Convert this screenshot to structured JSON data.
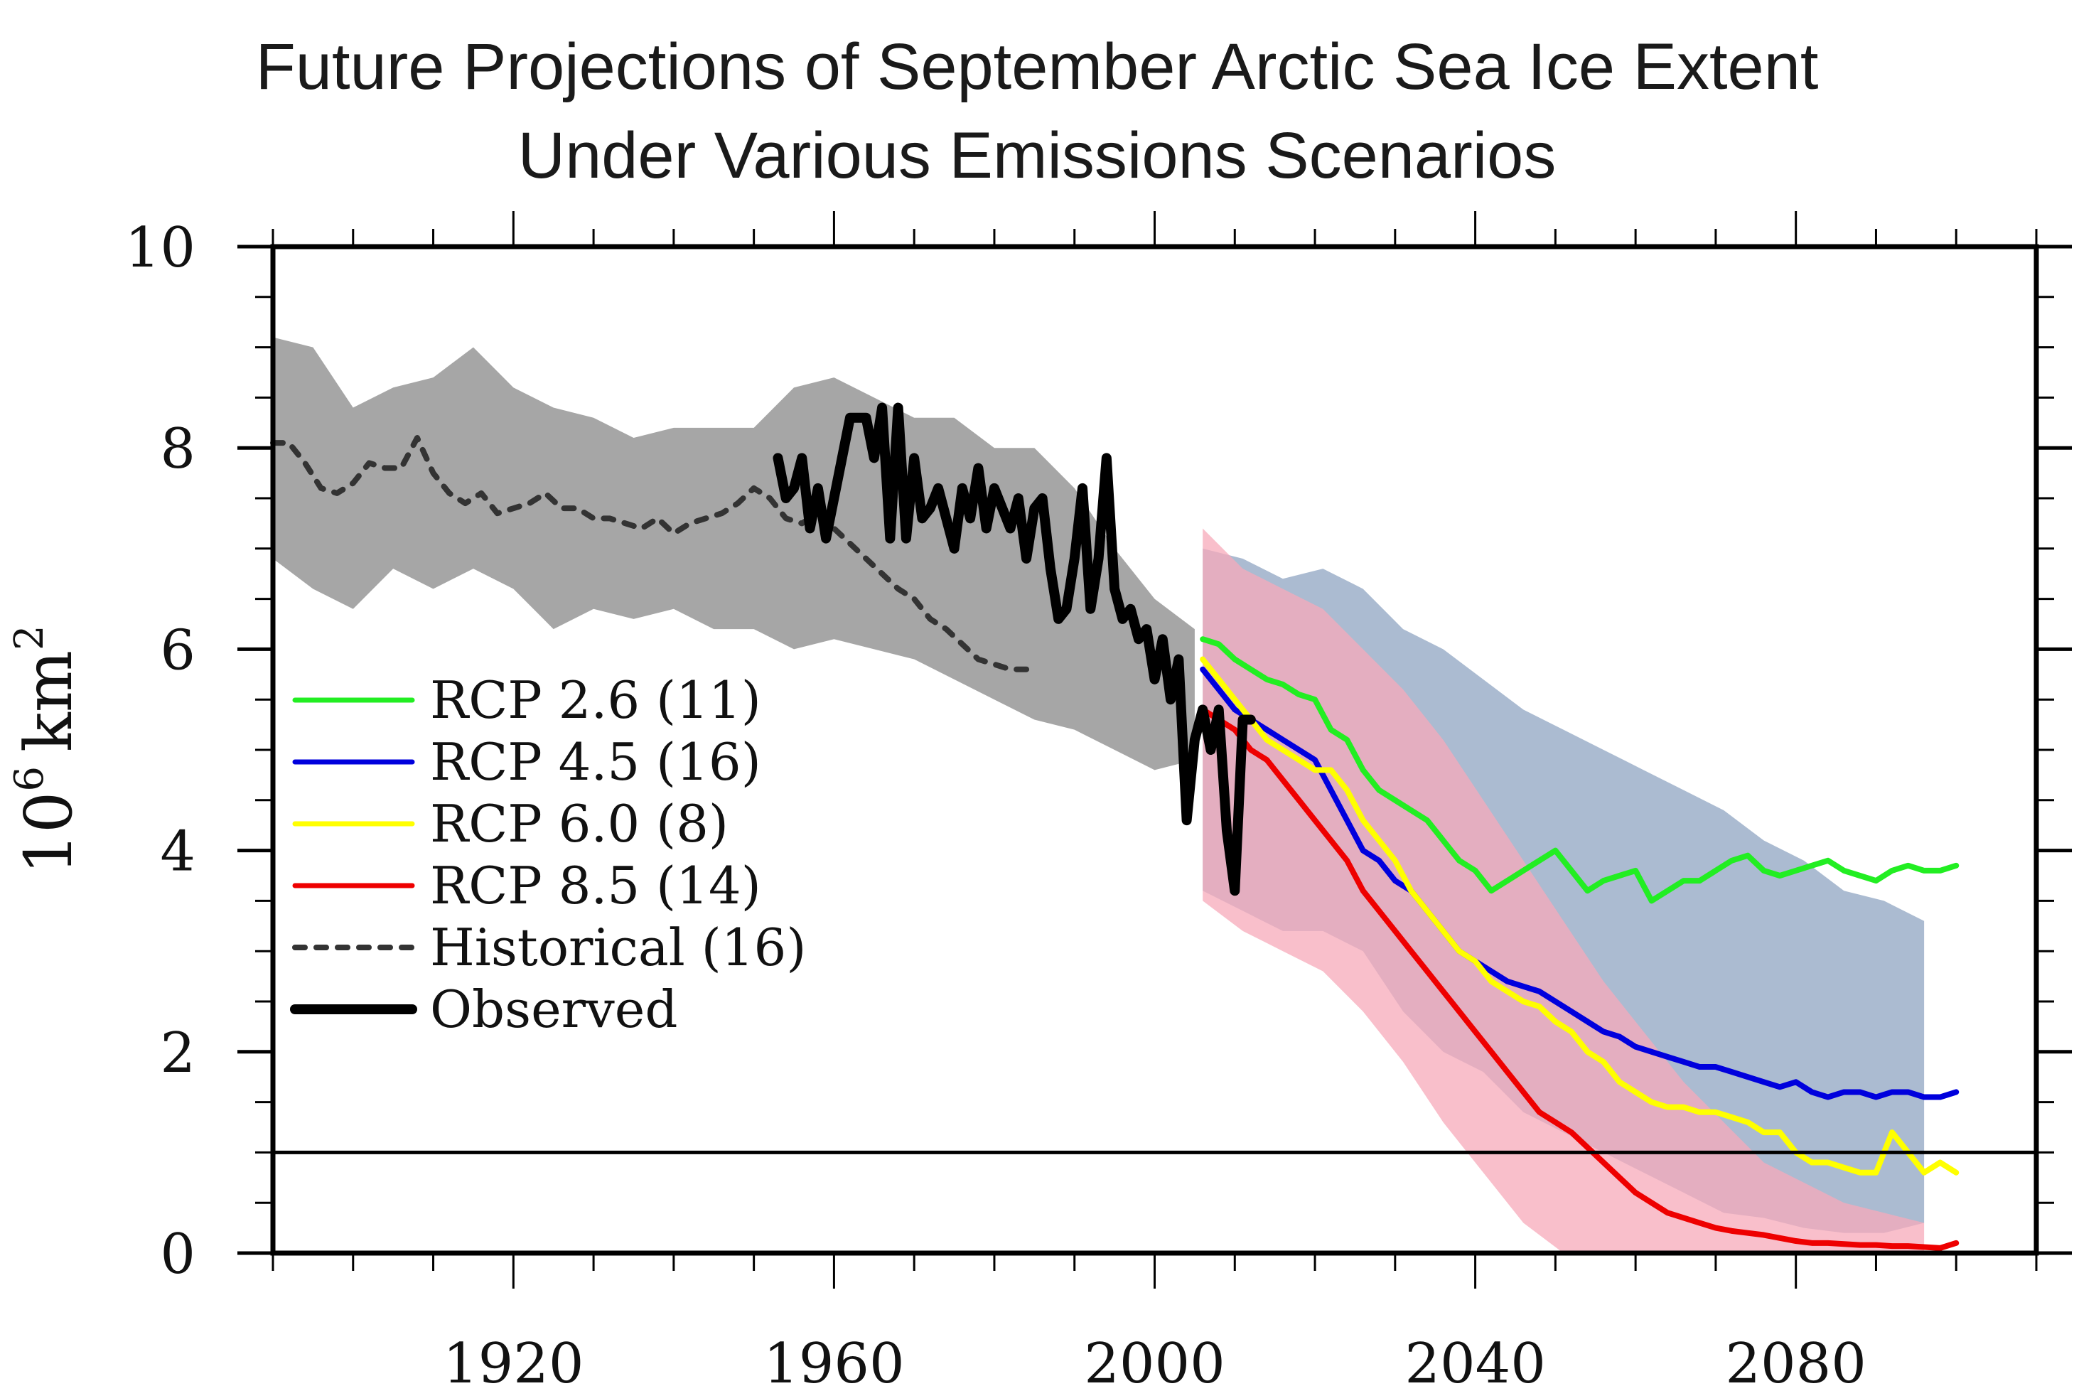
{
  "chart_data": {
    "type": "line",
    "title": "Future Projections of September Arctic Sea Ice Extent",
    "subtitle": "Under Various Emissions Scenarios",
    "xlabel": "",
    "ylabel": "10^6 km^2",
    "ylabel_base": "10",
    "ylabel_exp1": "6",
    "ylabel_unit": "km",
    "ylabel_exp2": "2",
    "xlim": [
      1890,
      2110
    ],
    "ylim": [
      0,
      10
    ],
    "x_major_ticks": [
      1920,
      1960,
      2000,
      2040,
      2080
    ],
    "x_tick_labels": [
      "1920",
      "1960",
      "2000",
      "2040",
      "2080"
    ],
    "x_minor_step": 10,
    "y_major_ticks": [
      0,
      2,
      4,
      6,
      8,
      10
    ],
    "y_tick_labels": [
      "0",
      "2",
      "4",
      "6",
      "8",
      "10"
    ],
    "y_minor_step": 0.5,
    "reference_line": 1.0,
    "grid": false,
    "legend_position": "middle-left",
    "legend": [
      {
        "label": "RCP 2.6 (11)",
        "color": "#22ee22",
        "style": "solid"
      },
      {
        "label": "RCP 4.5 (16)",
        "color": "#0000dd",
        "style": "solid"
      },
      {
        "label": "RCP 6.0 (8)",
        "color": "#ffff00",
        "style": "solid"
      },
      {
        "label": "RCP 8.5 (14)",
        "color": "#ee0000",
        "style": "solid"
      },
      {
        "label": "Historical (16)",
        "color": "#333333",
        "style": "dashed"
      },
      {
        "label": "Observed",
        "color": "#000000",
        "style": "thick"
      }
    ],
    "bands": [
      {
        "name": "historical-range",
        "color": "#a6a6a6",
        "x_start": 1890,
        "x_step": 5,
        "upper": [
          9.1,
          9.0,
          8.4,
          8.6,
          8.7,
          9.0,
          8.6,
          8.4,
          8.3,
          8.1,
          8.2,
          8.2,
          8.2,
          8.6,
          8.7,
          8.5,
          8.3,
          8.3,
          8.0,
          8.0,
          7.6,
          7.0,
          6.5,
          6.2
        ],
        "lower": [
          6.9,
          6.6,
          6.4,
          6.8,
          6.6,
          6.8,
          6.6,
          6.2,
          6.4,
          6.3,
          6.4,
          6.2,
          6.2,
          6.0,
          6.1,
          6.0,
          5.9,
          5.7,
          5.5,
          5.3,
          5.2,
          5.0,
          4.8,
          4.9
        ]
      },
      {
        "name": "rcp45-range",
        "color": "#8fa4c2",
        "x_start": 2006,
        "x_step": 5,
        "upper": [
          7.0,
          6.9,
          6.7,
          6.8,
          6.6,
          6.2,
          6.0,
          5.7,
          5.4,
          5.2,
          5.0,
          4.8,
          4.6,
          4.4,
          4.1,
          3.9,
          3.6,
          3.5,
          3.3
        ],
        "lower": [
          3.6,
          3.4,
          3.2,
          3.2,
          3.0,
          2.4,
          2.0,
          1.8,
          1.4,
          1.2,
          1.0,
          0.8,
          0.6,
          0.4,
          0.35,
          0.25,
          0.2,
          0.2,
          0.3
        ]
      },
      {
        "name": "rcp85-range",
        "color": "#f7a9b9",
        "x_start": 2006,
        "x_step": 5,
        "upper": [
          7.2,
          6.8,
          6.6,
          6.4,
          6.0,
          5.6,
          5.1,
          4.5,
          3.9,
          3.3,
          2.7,
          2.2,
          1.7,
          1.3,
          0.9,
          0.7,
          0.5,
          0.4,
          0.3
        ],
        "lower": [
          3.5,
          3.2,
          3.0,
          2.8,
          2.4,
          1.9,
          1.3,
          0.8,
          0.3,
          0.0,
          0.0,
          0.0,
          0.0,
          0.0,
          0.0,
          0.0,
          0.0,
          0.0,
          0.0
        ]
      }
    ],
    "series": [
      {
        "name": "Historical (16)",
        "color": "#333333",
        "style": "dashed",
        "x_start": 1890,
        "x_step": 2,
        "values": [
          8.05,
          8.05,
          7.85,
          7.6,
          7.55,
          7.65,
          7.85,
          7.8,
          7.8,
          8.1,
          7.75,
          7.55,
          7.45,
          7.55,
          7.35,
          7.4,
          7.45,
          7.55,
          7.4,
          7.4,
          7.3,
          7.3,
          7.25,
          7.2,
          7.3,
          7.15,
          7.25,
          7.3,
          7.35,
          7.45,
          7.6,
          7.5,
          7.3,
          7.25,
          7.35,
          7.2,
          7.05,
          6.9,
          6.75,
          6.6,
          6.5,
          6.3,
          6.2,
          6.05,
          5.9,
          5.85,
          5.8,
          5.8
        ]
      },
      {
        "name": "Observed",
        "color": "#000000",
        "style": "thick",
        "x_start": 1953,
        "x_step": 1,
        "values": [
          7.9,
          7.5,
          7.6,
          7.9,
          7.2,
          7.6,
          7.1,
          7.5,
          7.9,
          8.3,
          8.3,
          8.3,
          7.9,
          8.4,
          7.1,
          8.4,
          7.1,
          7.9,
          7.3,
          7.4,
          7.6,
          7.3,
          7.0,
          7.6,
          7.3,
          7.8,
          7.2,
          7.6,
          7.4,
          7.2,
          7.5,
          6.9,
          7.4,
          7.5,
          6.8,
          6.3,
          6.4,
          6.9,
          7.6,
          6.4,
          6.9,
          7.9,
          6.6,
          6.3,
          6.4,
          6.1,
          6.2,
          5.7,
          6.1,
          5.5,
          5.9,
          4.3,
          5.1,
          5.4,
          5.0,
          5.4,
          4.2,
          3.6,
          5.3,
          5.3
        ]
      },
      {
        "name": "RCP 2.6 (11)",
        "color": "#22ee22",
        "style": "solid",
        "x_start": 2006,
        "x_step": 2,
        "values": [
          6.1,
          6.05,
          5.9,
          5.8,
          5.7,
          5.65,
          5.55,
          5.5,
          5.2,
          5.1,
          4.8,
          4.6,
          4.5,
          4.4,
          4.3,
          4.1,
          3.9,
          3.8,
          3.6,
          3.7,
          3.8,
          3.9,
          4.0,
          3.8,
          3.6,
          3.7,
          3.75,
          3.8,
          3.5,
          3.6,
          3.7,
          3.7,
          3.8,
          3.9,
          3.95,
          3.8,
          3.75,
          3.8,
          3.85,
          3.9,
          3.8,
          3.75,
          3.7,
          3.8,
          3.85,
          3.8,
          3.8,
          3.85
        ]
      },
      {
        "name": "RCP 4.5 (16)",
        "color": "#0000dd",
        "style": "solid",
        "x_start": 2006,
        "x_step": 2,
        "values": [
          5.8,
          5.6,
          5.4,
          5.3,
          5.2,
          5.1,
          5.0,
          4.9,
          4.6,
          4.3,
          4.0,
          3.9,
          3.7,
          3.6,
          3.4,
          3.2,
          3.0,
          2.9,
          2.8,
          2.7,
          2.65,
          2.6,
          2.5,
          2.4,
          2.3,
          2.2,
          2.15,
          2.05,
          2.0,
          1.95,
          1.9,
          1.85,
          1.85,
          1.8,
          1.75,
          1.7,
          1.65,
          1.7,
          1.6,
          1.55,
          1.6,
          1.6,
          1.55,
          1.6,
          1.6,
          1.55,
          1.55,
          1.6
        ]
      },
      {
        "name": "RCP 6.0 (8)",
        "color": "#ffff00",
        "style": "solid",
        "x_start": 2006,
        "x_step": 2,
        "values": [
          5.9,
          5.7,
          5.5,
          5.3,
          5.1,
          5.0,
          4.9,
          4.8,
          4.8,
          4.6,
          4.3,
          4.1,
          3.9,
          3.6,
          3.4,
          3.2,
          3.0,
          2.9,
          2.7,
          2.6,
          2.5,
          2.45,
          2.3,
          2.2,
          2.0,
          1.9,
          1.7,
          1.6,
          1.5,
          1.45,
          1.45,
          1.4,
          1.4,
          1.35,
          1.3,
          1.2,
          1.2,
          1.0,
          0.9,
          0.9,
          0.85,
          0.8,
          0.8,
          1.2,
          1.0,
          0.8,
          0.9,
          0.8
        ]
      },
      {
        "name": "RCP 8.5 (14)",
        "color": "#ee0000",
        "style": "solid",
        "x_start": 2006,
        "x_step": 2,
        "values": [
          5.4,
          5.3,
          5.2,
          5.0,
          4.9,
          4.7,
          4.5,
          4.3,
          4.1,
          3.9,
          3.6,
          3.4,
          3.2,
          3.0,
          2.8,
          2.6,
          2.4,
          2.2,
          2.0,
          1.8,
          1.6,
          1.4,
          1.3,
          1.2,
          1.05,
          0.9,
          0.75,
          0.6,
          0.5,
          0.4,
          0.35,
          0.3,
          0.25,
          0.22,
          0.2,
          0.18,
          0.15,
          0.12,
          0.1,
          0.1,
          0.09,
          0.08,
          0.08,
          0.07,
          0.07,
          0.06,
          0.05,
          0.1
        ]
      }
    ]
  }
}
